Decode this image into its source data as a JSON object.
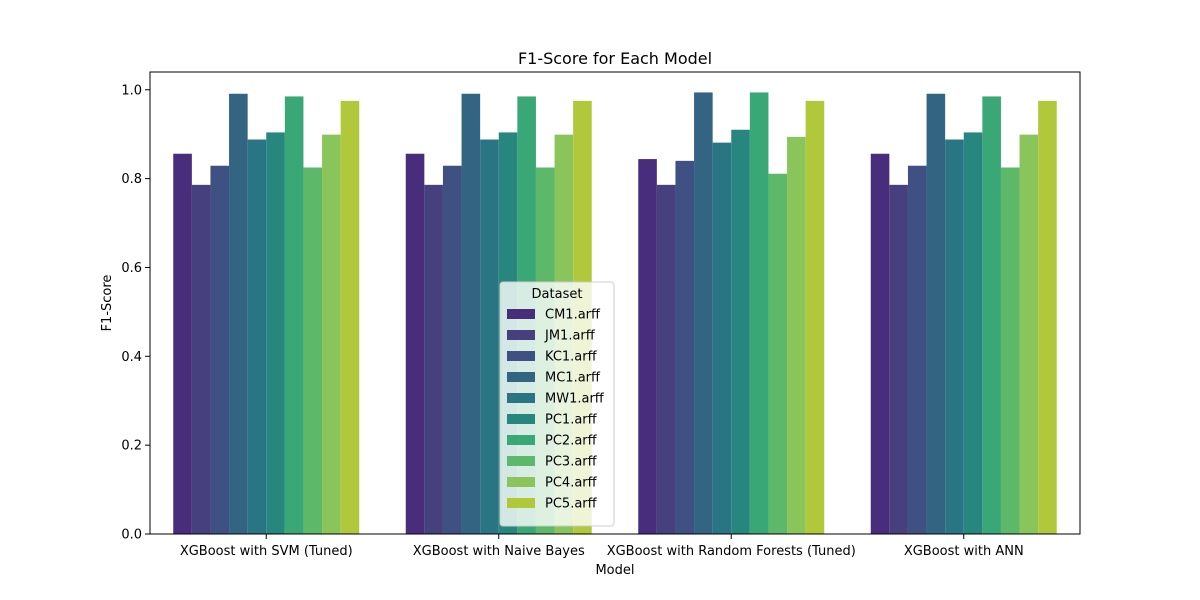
{
  "chart_data": {
    "type": "bar",
    "title": "F1-Score for Each Model",
    "xlabel": "Model",
    "ylabel": "F1-Score",
    "ylim": [
      0,
      1.04
    ],
    "yticks": [
      "0.0",
      "0.2",
      "0.4",
      "0.6",
      "0.8",
      "1.0"
    ],
    "grid": false,
    "categories": [
      "XGBoost with SVM (Tuned)",
      "XGBoost with Naive Bayes",
      "XGBoost with Random Forests (Tuned)",
      "XGBoost with ANN"
    ],
    "legend": {
      "title": "Dataset",
      "placement": "lower-center"
    },
    "series": [
      {
        "name": "CM1.arff",
        "color": "#472d7b",
        "values": [
          0.856,
          0.856,
          0.844,
          0.856
        ]
      },
      {
        "name": "JM1.arff",
        "color": "#46407f",
        "values": [
          0.786,
          0.786,
          0.786,
          0.786
        ]
      },
      {
        "name": "KC1.arff",
        "color": "#3f5183",
        "values": [
          0.829,
          0.829,
          0.84,
          0.829
        ]
      },
      {
        "name": "MC1.arff",
        "color": "#336482",
        "values": [
          0.991,
          0.991,
          0.994,
          0.991
        ]
      },
      {
        "name": "MW1.arff",
        "color": "#2a7584",
        "values": [
          0.888,
          0.888,
          0.881,
          0.888
        ]
      },
      {
        "name": "PC1.arff",
        "color": "#27877f",
        "values": [
          0.904,
          0.904,
          0.91,
          0.904
        ]
      },
      {
        "name": "PC2.arff",
        "color": "#3aa776",
        "values": [
          0.985,
          0.985,
          0.994,
          0.985
        ]
      },
      {
        "name": "PC3.arff",
        "color": "#5db86a",
        "values": [
          0.825,
          0.825,
          0.811,
          0.825
        ]
      },
      {
        "name": "PC4.arff",
        "color": "#8ac55b",
        "values": [
          0.899,
          0.899,
          0.894,
          0.899
        ]
      },
      {
        "name": "PC5.arff",
        "color": "#b1c83b",
        "values": [
          0.975,
          0.975,
          0.975,
          0.975
        ]
      }
    ]
  }
}
